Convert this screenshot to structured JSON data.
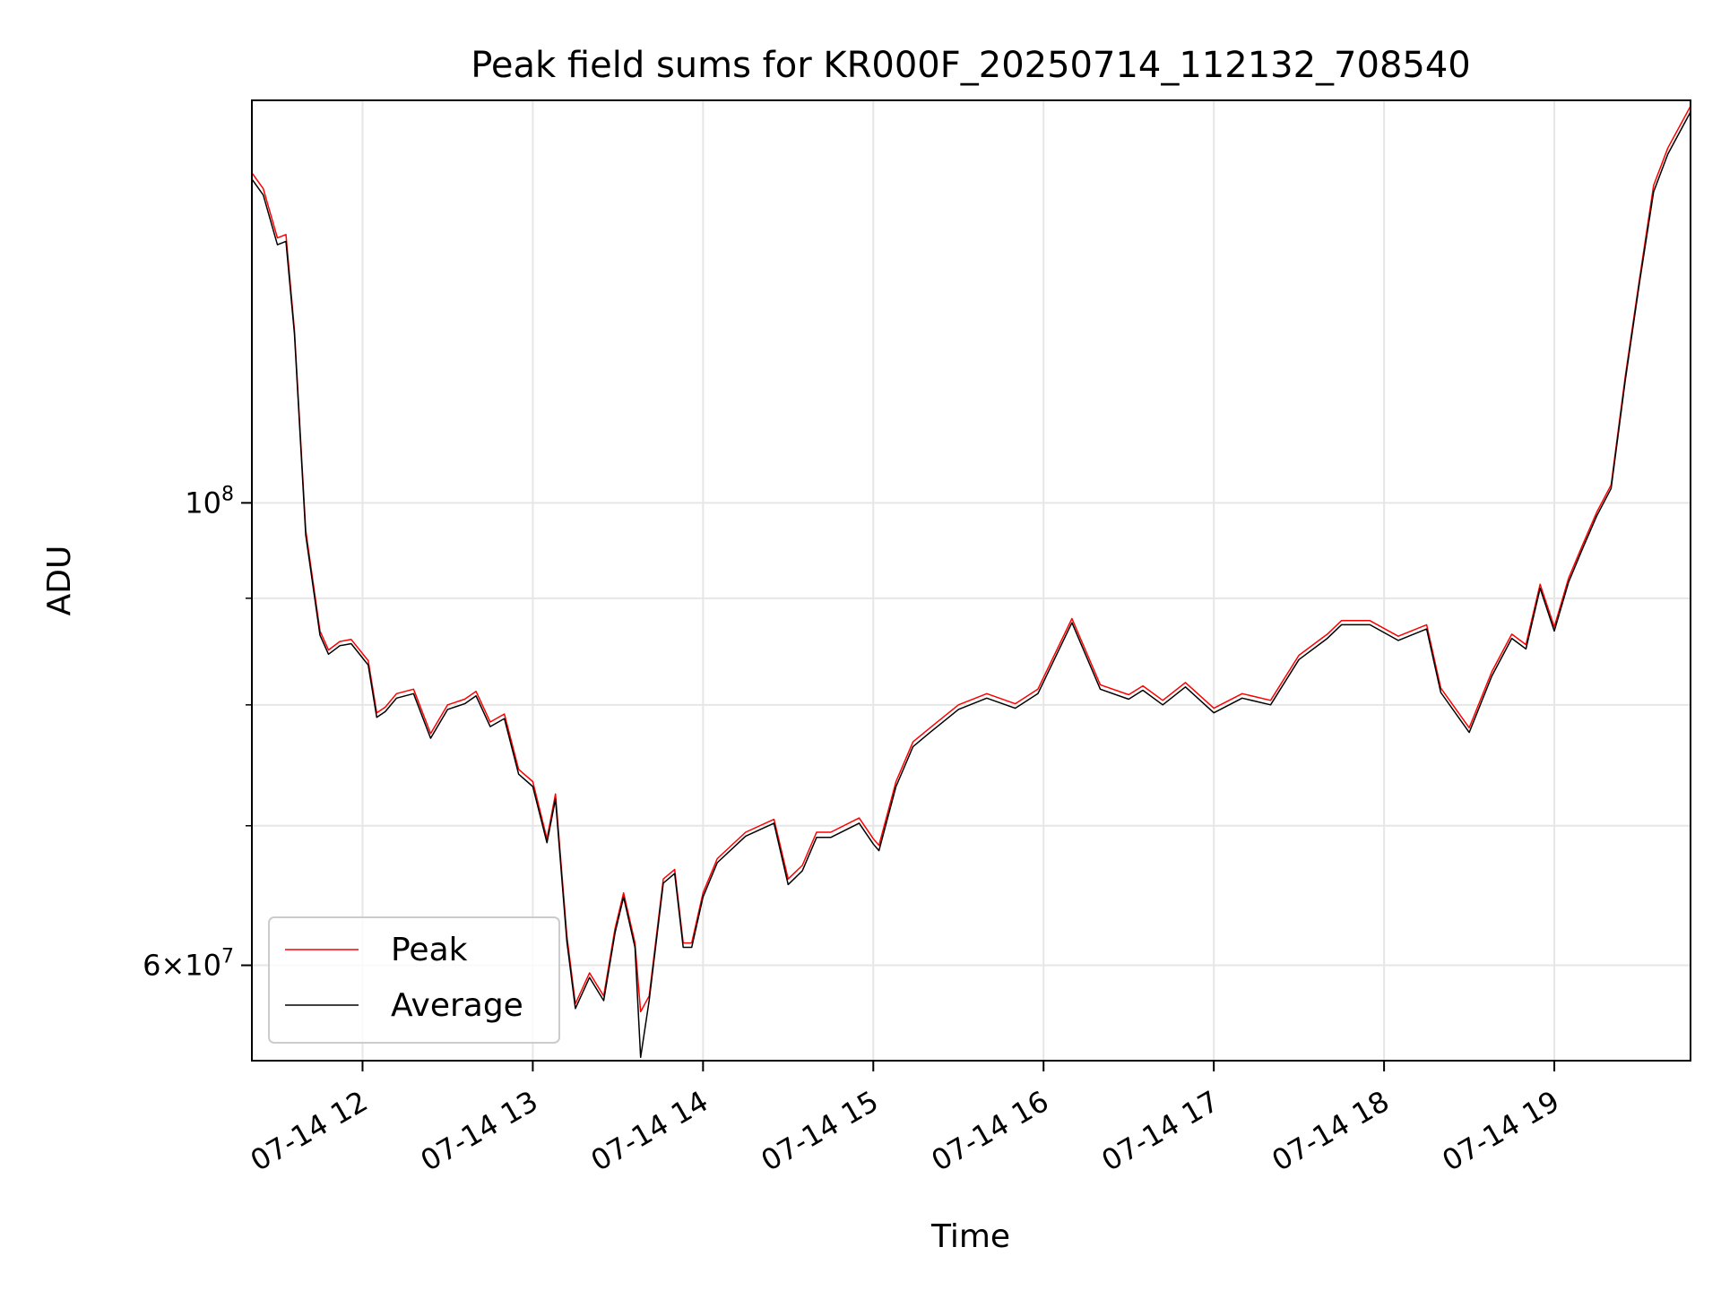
{
  "chart_data": {
    "type": "line",
    "title": "Peak field sums for KR000F_20250714_112132_708540",
    "xlabel": "Time",
    "ylabel": "ADU",
    "yscale": "log",
    "xlim": [
      "07-14 11:21",
      "07-14 19:48"
    ],
    "ylim": [
      54000000,
      156000000
    ],
    "grid": true,
    "legend_position": "lower-left",
    "x_ticks": [
      "07-14 12",
      "07-14 13",
      "07-14 14",
      "07-14 15",
      "07-14 16",
      "07-14 17",
      "07-14 18",
      "07-14 19"
    ],
    "y_ticks": [
      {
        "value": 100000000,
        "base": "10",
        "exp": "8",
        "mant": ""
      },
      {
        "value": 60000000,
        "base": "10",
        "exp": "7",
        "mant": "6×"
      }
    ],
    "y_minor_ticks": [
      70000000,
      80000000,
      90000000
    ],
    "x": [
      "07-14 11:21",
      "07-14 11:25",
      "07-14 11:30",
      "07-14 11:33",
      "07-14 11:36",
      "07-14 11:40",
      "07-14 11:45",
      "07-14 11:48",
      "07-14 11:52",
      "07-14 11:56",
      "07-14 12:02",
      "07-14 12:05",
      "07-14 12:08",
      "07-14 12:12",
      "07-14 12:18",
      "07-14 12:24",
      "07-14 12:30",
      "07-14 12:36",
      "07-14 12:40",
      "07-14 12:45",
      "07-14 12:50",
      "07-14 12:55",
      "07-14 13:00",
      "07-14 13:05",
      "07-14 13:08",
      "07-14 13:12",
      "07-14 13:15",
      "07-14 13:20",
      "07-14 13:25",
      "07-14 13:29",
      "07-14 13:32",
      "07-14 13:36",
      "07-14 13:38",
      "07-14 13:41",
      "07-14 13:46",
      "07-14 13:50",
      "07-14 13:53",
      "07-14 13:56",
      "07-14 14:00",
      "07-14 14:05",
      "07-14 14:15",
      "07-14 14:25",
      "07-14 14:30",
      "07-14 14:35",
      "07-14 14:40",
      "07-14 14:45",
      "07-14 14:55",
      "07-14 15:00",
      "07-14 15:02",
      "07-14 15:08",
      "07-14 15:14",
      "07-14 15:20",
      "07-14 15:30",
      "07-14 15:40",
      "07-14 15:50",
      "07-14 15:58",
      "07-14 16:10",
      "07-14 16:20",
      "07-14 16:30",
      "07-14 16:35",
      "07-14 16:42",
      "07-14 16:50",
      "07-14 17:00",
      "07-14 17:10",
      "07-14 17:20",
      "07-14 17:30",
      "07-14 17:40",
      "07-14 17:45",
      "07-14 17:55",
      "07-14 18:05",
      "07-14 18:15",
      "07-14 18:20",
      "07-14 18:30",
      "07-14 18:38",
      "07-14 18:45",
      "07-14 18:50",
      "07-14 18:55",
      "07-14 19:00",
      "07-14 19:05",
      "07-14 19:10",
      "07-14 19:15",
      "07-14 19:20",
      "07-14 19:25",
      "07-14 19:30",
      "07-14 19:35",
      "07-14 19:40",
      "07-14 19:48"
    ],
    "series": [
      {
        "name": "Peak",
        "color": "#ff0000",
        "values": [
          144000000,
          141500000,
          134000000,
          134500000,
          121000000,
          97000000,
          86800000,
          85000000,
          85800000,
          86000000,
          84000000,
          79300000,
          79800000,
          81000000,
          81400000,
          77500000,
          80000000,
          80500000,
          81200000,
          78500000,
          79200000,
          74500000,
          73500000,
          69000000,
          72500000,
          62000000,
          57500000,
          59500000,
          58000000,
          62500000,
          65000000,
          61500000,
          57000000,
          58000000,
          66000000,
          66700000,
          61500000,
          61500000,
          65000000,
          67500000,
          69500000,
          70500000,
          66000000,
          67000000,
          69500000,
          69500000,
          70600000,
          69000000,
          68500000,
          73500000,
          76800000,
          78000000,
          80000000,
          81000000,
          80100000,
          81400000,
          88000000,
          81800000,
          80900000,
          81700000,
          80400000,
          82000000,
          79700000,
          81000000,
          80400000,
          84500000,
          86500000,
          87800000,
          87800000,
          86300000,
          87400000,
          81500000,
          78000000,
          83000000,
          86500000,
          85500000,
          91400000,
          87200000,
          92000000,
          95500000,
          99000000,
          102000000,
          115000000,
          128000000,
          142000000,
          148000000,
          155000000
        ]
      },
      {
        "name": "Average",
        "color": "#000000",
        "values": [
          143000000,
          140500000,
          133000000,
          133500000,
          120500000,
          96500000,
          86400000,
          84600000,
          85400000,
          85600000,
          83600000,
          78900000,
          79400000,
          80600000,
          81000000,
          77100000,
          79600000,
          80100000,
          80800000,
          78100000,
          78800000,
          74100000,
          73100000,
          68700000,
          72100000,
          61600000,
          57200000,
          59200000,
          57700000,
          62200000,
          64700000,
          61200000,
          54200000,
          57700000,
          65700000,
          66400000,
          61200000,
          61200000,
          64700000,
          67200000,
          69200000,
          70200000,
          65600000,
          66600000,
          69100000,
          69100000,
          70200000,
          68600000,
          68100000,
          73100000,
          76400000,
          77600000,
          79600000,
          80600000,
          79700000,
          81000000,
          87600000,
          81400000,
          80500000,
          81300000,
          80000000,
          81600000,
          79300000,
          80600000,
          80000000,
          84100000,
          86100000,
          87400000,
          87400000,
          85900000,
          87000000,
          81100000,
          77600000,
          82600000,
          86100000,
          85100000,
          91000000,
          86800000,
          91600000,
          95100000,
          98600000,
          101600000,
          114500000,
          127500000,
          141000000,
          147000000,
          154000000
        ]
      }
    ]
  }
}
